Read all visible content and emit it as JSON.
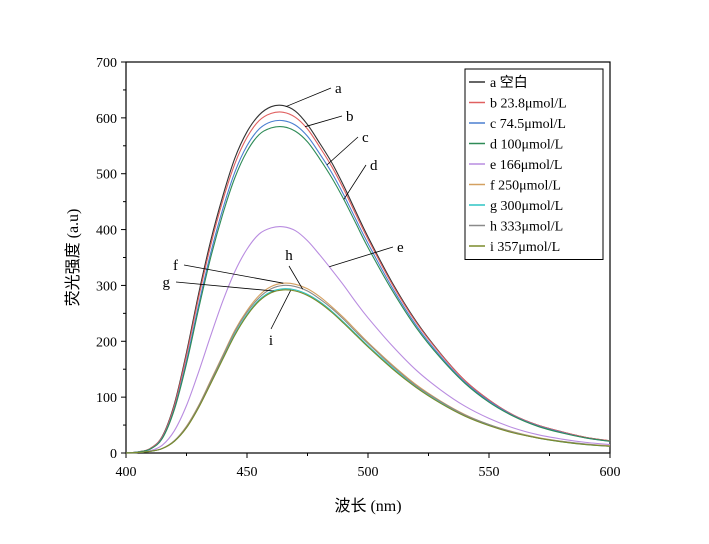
{
  "chart_data": {
    "type": "line",
    "xlabel": "波长 (nm)",
    "ylabel": "荧光强度 (a.u)",
    "xlim": [
      400,
      600
    ],
    "ylim": [
      0,
      700
    ],
    "xticks": [
      400,
      450,
      500,
      550,
      600
    ],
    "yticks": [
      0,
      100,
      200,
      300,
      400,
      500,
      600,
      700
    ],
    "grid": false,
    "legend_position": "top-right",
    "series": [
      {
        "name": "a 空白",
        "letter": "a",
        "color": "#333333",
        "x": [
          400,
          405,
          410,
          415,
          420,
          425,
          430,
          435,
          440,
          445,
          450,
          455,
          460,
          465,
          470,
          475,
          480,
          485,
          490,
          495,
          500,
          510,
          520,
          530,
          540,
          550,
          560,
          570,
          580,
          590,
          600
        ],
        "values": [
          0,
          2,
          8,
          30,
          88,
          180,
          285,
          380,
          460,
          528,
          575,
          605,
          620,
          622,
          612,
          588,
          555,
          520,
          478,
          432,
          387,
          305,
          235,
          178,
          130,
          95,
          68,
          50,
          38,
          28,
          22
        ]
      },
      {
        "name": "b 23.8μmol/L",
        "letter": "b",
        "color": "#e06060",
        "x": [
          400,
          405,
          410,
          415,
          420,
          425,
          430,
          435,
          440,
          445,
          450,
          455,
          460,
          465,
          470,
          475,
          480,
          485,
          490,
          495,
          500,
          510,
          520,
          530,
          540,
          550,
          560,
          570,
          580,
          590,
          600
        ],
        "values": [
          0,
          2,
          8,
          29,
          85,
          175,
          278,
          372,
          452,
          518,
          565,
          595,
          608,
          610,
          601,
          580,
          548,
          513,
          472,
          427,
          383,
          302,
          233,
          177,
          130,
          95,
          68,
          50,
          38,
          28,
          22
        ]
      },
      {
        "name": "c 74.5μmol/L",
        "letter": "c",
        "color": "#4a7fd1",
        "x": [
          400,
          405,
          410,
          415,
          420,
          425,
          430,
          435,
          440,
          445,
          450,
          455,
          460,
          465,
          470,
          475,
          480,
          485,
          490,
          495,
          500,
          510,
          520,
          530,
          540,
          550,
          560,
          570,
          580,
          590,
          600
        ],
        "values": [
          0,
          2,
          7,
          27,
          80,
          165,
          265,
          358,
          437,
          503,
          550,
          580,
          593,
          595,
          587,
          567,
          536,
          502,
          462,
          418,
          375,
          296,
          228,
          173,
          127,
          93,
          67,
          49,
          37,
          27,
          21
        ]
      },
      {
        "name": "d 100μmol/L",
        "letter": "d",
        "color": "#2e8b57",
        "x": [
          400,
          405,
          410,
          415,
          420,
          425,
          430,
          435,
          440,
          445,
          450,
          455,
          460,
          465,
          470,
          475,
          480,
          485,
          490,
          495,
          500,
          510,
          520,
          530,
          540,
          550,
          560,
          570,
          580,
          590,
          600
        ],
        "values": [
          0,
          2,
          7,
          26,
          78,
          160,
          258,
          350,
          428,
          493,
          540,
          570,
          582,
          584,
          576,
          557,
          527,
          493,
          454,
          411,
          368,
          291,
          224,
          170,
          125,
          91,
          66,
          48,
          36,
          27,
          21
        ]
      },
      {
        "name": "e 166μmol/L",
        "letter": "e",
        "color": "#b98ce0",
        "x": [
          400,
          405,
          410,
          415,
          420,
          425,
          430,
          435,
          440,
          445,
          450,
          455,
          460,
          465,
          470,
          475,
          480,
          485,
          490,
          495,
          500,
          510,
          520,
          530,
          540,
          550,
          560,
          570,
          580,
          590,
          600
        ],
        "values": [
          0,
          1,
          4,
          14,
          40,
          85,
          145,
          210,
          272,
          325,
          365,
          392,
          403,
          405,
          398,
          380,
          355,
          328,
          300,
          270,
          242,
          192,
          148,
          113,
          84,
          62,
          45,
          33,
          25,
          19,
          15
        ]
      },
      {
        "name": "f 250μmol/L",
        "letter": "f",
        "color": "#d4a060",
        "x": [
          400,
          405,
          410,
          415,
          420,
          425,
          430,
          435,
          440,
          445,
          450,
          455,
          460,
          465,
          470,
          475,
          480,
          485,
          490,
          495,
          500,
          510,
          520,
          530,
          540,
          550,
          560,
          570,
          580,
          590,
          600
        ],
        "values": [
          0,
          1,
          3,
          8,
          22,
          48,
          85,
          130,
          175,
          220,
          255,
          282,
          298,
          304,
          302,
          294,
          280,
          262,
          242,
          220,
          198,
          158,
          122,
          93,
          69,
          51,
          38,
          28,
          21,
          16,
          13
        ]
      },
      {
        "name": "g 300μmol/L",
        "letter": "g",
        "color": "#2ec4c4",
        "x": [
          400,
          405,
          410,
          415,
          420,
          425,
          430,
          435,
          440,
          445,
          450,
          455,
          460,
          465,
          470,
          475,
          480,
          485,
          490,
          495,
          500,
          510,
          520,
          530,
          540,
          550,
          560,
          570,
          580,
          590,
          600
        ],
        "values": [
          0,
          1,
          3,
          8,
          21,
          46,
          82,
          126,
          170,
          213,
          248,
          274,
          289,
          294,
          292,
          284,
          271,
          254,
          234,
          213,
          192,
          153,
          118,
          90,
          67,
          50,
          37,
          27,
          20,
          15,
          12
        ]
      },
      {
        "name": "h 333μmol/L",
        "letter": "h",
        "color": "#8a8a8a",
        "x": [
          400,
          405,
          410,
          415,
          420,
          425,
          430,
          435,
          440,
          445,
          450,
          455,
          460,
          465,
          470,
          475,
          480,
          485,
          490,
          495,
          500,
          510,
          520,
          530,
          540,
          550,
          560,
          570,
          580,
          590,
          600
        ],
        "values": [
          0,
          1,
          3,
          8,
          22,
          47,
          84,
          128,
          173,
          217,
          252,
          278,
          294,
          300,
          298,
          290,
          276,
          259,
          239,
          217,
          196,
          156,
          120,
          92,
          68,
          51,
          37,
          27,
          21,
          16,
          12
        ]
      },
      {
        "name": "i 357μmol/L",
        "letter": "i",
        "color": "#7a8a2a",
        "x": [
          400,
          405,
          410,
          415,
          420,
          425,
          430,
          435,
          440,
          445,
          450,
          455,
          460,
          465,
          470,
          475,
          480,
          485,
          490,
          495,
          500,
          510,
          520,
          530,
          540,
          550,
          560,
          570,
          580,
          590,
          600
        ],
        "values": [
          0,
          1,
          3,
          8,
          21,
          45,
          81,
          124,
          168,
          211,
          246,
          272,
          287,
          292,
          290,
          282,
          269,
          252,
          232,
          211,
          190,
          151,
          117,
          89,
          66,
          49,
          36,
          27,
          20,
          15,
          12
        ]
      }
    ],
    "annotations": [
      {
        "text": "a",
        "points_to_series": "a"
      },
      {
        "text": "b",
        "points_to_series": "b"
      },
      {
        "text": "c",
        "points_to_series": "c"
      },
      {
        "text": "d",
        "points_to_series": "d"
      },
      {
        "text": "e",
        "points_to_series": "e"
      },
      {
        "text": "f",
        "points_to_series": "f"
      },
      {
        "text": "g",
        "points_to_series": "g"
      },
      {
        "text": "h",
        "points_to_series": "h"
      },
      {
        "text": "i",
        "points_to_series": "i"
      }
    ]
  }
}
